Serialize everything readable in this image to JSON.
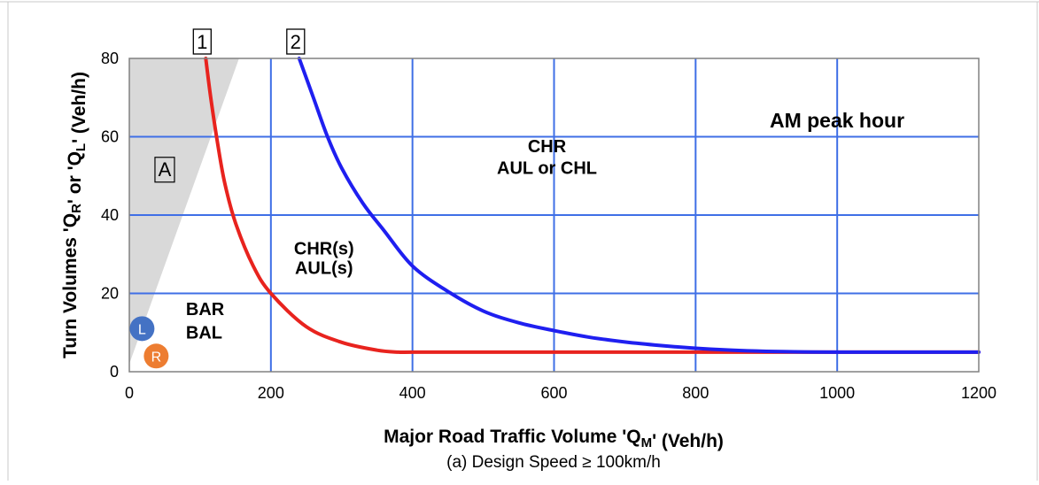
{
  "chart_data": {
    "type": "line",
    "title": "AM peak hour",
    "subtitle": "(a) Design Speed ≥ 100km/h",
    "xlabel": "Major Road Traffic Volume 'QM' (Veh/h)",
    "ylabel": "Turn Volumes 'QR' or 'QL' (Veh/h)",
    "xlim": [
      0,
      1200
    ],
    "ylim": [
      0,
      80
    ],
    "x_ticks": [
      "0",
      "200",
      "400",
      "600",
      "800",
      "1000",
      "1200"
    ],
    "y_ticks": [
      "0",
      "20",
      "40",
      "60",
      "80"
    ],
    "grid": true,
    "series": [
      {
        "name": "1",
        "color": "#e8231e",
        "x": [
          108,
          115,
          125,
          135,
          150,
          175,
          200,
          250,
          300,
          350,
          380,
          400,
          500,
          600,
          700,
          800,
          900,
          1000,
          1100,
          1200
        ],
        "y": [
          80,
          70,
          58,
          48,
          38,
          27,
          20,
          11.5,
          7.5,
          5.5,
          5,
          5,
          5,
          5,
          5,
          5,
          5,
          5,
          5,
          5
        ]
      },
      {
        "name": "2",
        "color": "#1f1ff0",
        "x": [
          240,
          260,
          280,
          300,
          330,
          360,
          400,
          450,
          500,
          550,
          600,
          650,
          700,
          750,
          800,
          850,
          900,
          950,
          1000,
          1100,
          1200
        ],
        "y": [
          80,
          70,
          60,
          52,
          43,
          36,
          27,
          20.5,
          15.5,
          12.5,
          10.5,
          8.8,
          7.6,
          6.7,
          6.0,
          5.5,
          5.2,
          5.05,
          5,
          5,
          5
        ]
      }
    ],
    "shaded_region_A": {
      "color": "#d9d9d9",
      "polygon": [
        [
          0,
          0
        ],
        [
          0,
          80
        ],
        [
          155,
          80
        ],
        [
          0,
          2
        ]
      ]
    },
    "series_markers": [
      "1",
      "2"
    ],
    "annotations": [
      {
        "text": "A",
        "x": 50,
        "y": 50,
        "boxed": true
      },
      {
        "text": "CHR",
        "x": 590,
        "y": 56
      },
      {
        "text": "AUL or CHL",
        "x": 590,
        "y": 50.5
      },
      {
        "text": "CHR(s)",
        "x": 275,
        "y": 30
      },
      {
        "text": "AUL(s)",
        "x": 275,
        "y": 25
      },
      {
        "text": "BAR",
        "x": 80,
        "y": 14.5
      },
      {
        "text": "BAL",
        "x": 80,
        "y": 8.5
      }
    ],
    "markers": [
      {
        "label": "L",
        "color": "#4472c4",
        "x": 18,
        "y": 11
      },
      {
        "label": "R",
        "color": "#ed7d31",
        "x": 38,
        "y": 4
      }
    ]
  }
}
